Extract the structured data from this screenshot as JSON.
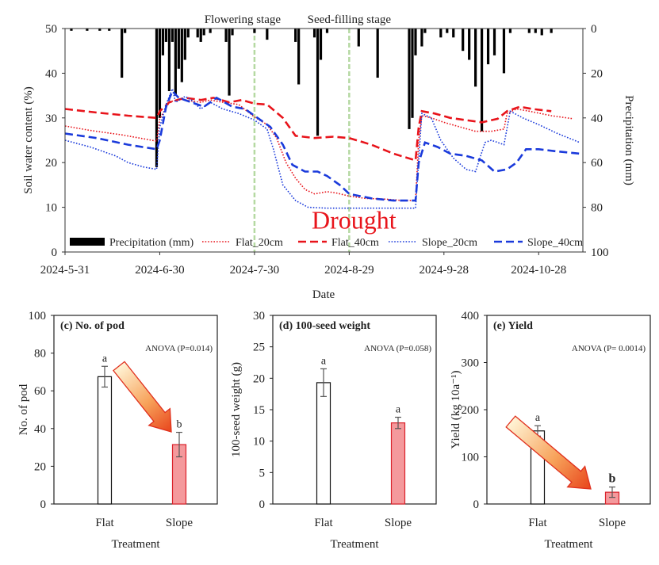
{
  "chart_data": [
    {
      "type": "line",
      "xlabel": "Date",
      "ylabel": "Soil water content (%)",
      "y2label": "Precipitation (mm)",
      "x_ticks": [
        "2024-5-31",
        "2024-6-30",
        "2024-7-30",
        "2024-8-29",
        "2024-9-28",
        "2024-10-28"
      ],
      "x_range": [
        "2024-5-31",
        "2024-11-11"
      ],
      "ylim": [
        0,
        50
      ],
      "y_ticks": [
        0,
        10,
        20,
        30,
        40,
        50
      ],
      "y2lim": [
        0,
        100
      ],
      "y2_inverted": true,
      "y2_ticks": [
        0,
        20,
        40,
        60,
        80,
        100
      ],
      "annotations": [
        {
          "text": "Flowering stage",
          "x": "2024-7-30"
        },
        {
          "text": "Seed-filling stage",
          "x": "2024-8-29"
        },
        {
          "text": "Drought",
          "x": "2024-8-29",
          "y": 7,
          "color": "#e8141b"
        }
      ],
      "precipitation": {
        "name": "Precipitation (mm)",
        "color": "#000000",
        "points": [
          [
            "2024-6-2",
            1
          ],
          [
            "2024-6-7",
            1
          ],
          [
            "2024-6-11",
            1
          ],
          [
            "2024-6-14",
            1
          ],
          [
            "2024-6-18",
            22
          ],
          [
            "2024-6-19",
            2
          ],
          [
            "2024-6-29",
            62
          ],
          [
            "2024-6-30",
            40
          ],
          [
            "2024-7-1",
            12
          ],
          [
            "2024-7-2",
            6
          ],
          [
            "2024-7-3",
            28
          ],
          [
            "2024-7-4",
            6
          ],
          [
            "2024-7-5",
            30
          ],
          [
            "2024-7-6",
            18
          ],
          [
            "2024-7-7",
            24
          ],
          [
            "2024-7-8",
            14
          ],
          [
            "2024-7-9",
            4
          ],
          [
            "2024-7-12",
            4
          ],
          [
            "2024-7-13",
            6
          ],
          [
            "2024-7-14",
            3
          ],
          [
            "2024-7-16",
            2
          ],
          [
            "2024-7-21",
            6
          ],
          [
            "2024-7-22",
            30
          ],
          [
            "2024-7-23",
            3
          ],
          [
            "2024-7-30",
            2
          ],
          [
            "2024-8-3",
            5
          ],
          [
            "2024-8-12",
            6
          ],
          [
            "2024-8-13",
            25
          ],
          [
            "2024-8-18",
            4
          ],
          [
            "2024-8-19",
            48
          ],
          [
            "2024-8-20",
            14
          ],
          [
            "2024-8-22",
            2
          ],
          [
            "2024-9-1",
            8
          ],
          [
            "2024-9-7",
            22
          ],
          [
            "2024-9-17",
            45
          ],
          [
            "2024-9-18",
            40
          ],
          [
            "2024-9-19",
            12
          ],
          [
            "2024-9-21",
            8
          ],
          [
            "2024-9-22",
            2
          ],
          [
            "2024-9-27",
            4
          ],
          [
            "2024-9-29",
            2
          ],
          [
            "2024-10-1",
            4
          ],
          [
            "2024-10-4",
            10
          ],
          [
            "2024-10-6",
            14
          ],
          [
            "2024-10-8",
            26
          ],
          [
            "2024-10-10",
            46
          ],
          [
            "2024-10-12",
            16
          ],
          [
            "2024-10-14",
            12
          ],
          [
            "2024-10-17",
            20
          ],
          [
            "2024-10-19",
            2
          ],
          [
            "2024-10-25",
            2
          ],
          [
            "2024-10-27",
            2
          ],
          [
            "2024-10-29",
            3
          ],
          [
            "2024-11-1",
            2
          ]
        ]
      },
      "series": [
        {
          "name": "Flat_20cm",
          "color": "#e8141b",
          "style": "dotted",
          "points": [
            [
              "2024-5-31",
              28.2
            ],
            [
              "2024-6-8",
              27.2
            ],
            [
              "2024-6-18",
              26.2
            ],
            [
              "2024-6-29",
              24.8
            ],
            [
              "2024-6-30",
              29.8
            ],
            [
              "2024-7-3",
              33.5
            ],
            [
              "2024-7-6",
              34.2
            ],
            [
              "2024-7-10",
              33.8
            ],
            [
              "2024-7-13",
              33.5
            ],
            [
              "2024-7-16",
              34.0
            ],
            [
              "2024-7-20",
              33.5
            ],
            [
              "2024-7-25",
              33.0
            ],
            [
              "2024-7-30",
              30.2
            ],
            [
              "2024-8-3",
              28.5
            ],
            [
              "2024-8-6",
              25.5
            ],
            [
              "2024-8-9",
              20.0
            ],
            [
              "2024-8-12",
              16.5
            ],
            [
              "2024-8-15",
              14.0
            ],
            [
              "2024-8-18",
              13.0
            ],
            [
              "2024-8-22",
              13.5
            ],
            [
              "2024-8-25",
              13.2
            ],
            [
              "2024-8-29",
              12.5
            ],
            [
              "2024-9-3",
              12.0
            ],
            [
              "2024-9-10",
              11.8
            ],
            [
              "2024-9-15",
              11.5
            ],
            [
              "2024-9-19",
              11.5
            ],
            [
              "2024-9-20",
              25.0
            ],
            [
              "2024-9-21",
              30.5
            ],
            [
              "2024-9-24",
              30.0
            ],
            [
              "2024-9-28",
              29.0
            ],
            [
              "2024-10-3",
              28.0
            ],
            [
              "2024-10-8",
              27.0
            ],
            [
              "2024-10-13",
              27.0
            ],
            [
              "2024-10-17",
              27.5
            ],
            [
              "2024-10-18",
              31.0
            ],
            [
              "2024-10-21",
              32.0
            ],
            [
              "2024-10-25",
              31.5
            ],
            [
              "2024-11-1",
              30.5
            ],
            [
              "2024-11-8",
              29.8
            ]
          ]
        },
        {
          "name": "Flat_40cm",
          "color": "#e8141b",
          "style": "dashed",
          "points": [
            [
              "2024-5-31",
              32.0
            ],
            [
              "2024-6-10",
              31.2
            ],
            [
              "2024-6-20",
              30.5
            ],
            [
              "2024-6-29",
              30.0
            ],
            [
              "2024-6-30",
              31.5
            ],
            [
              "2024-7-3",
              33.5
            ],
            [
              "2024-7-8",
              34.5
            ],
            [
              "2024-7-13",
              34.0
            ],
            [
              "2024-7-17",
              34.5
            ],
            [
              "2024-7-22",
              33.5
            ],
            [
              "2024-7-26",
              34.0
            ],
            [
              "2024-7-30",
              33.2
            ],
            [
              "2024-8-3",
              33.0
            ],
            [
              "2024-8-8",
              30.0
            ],
            [
              "2024-8-12",
              26.0
            ],
            [
              "2024-8-18",
              25.5
            ],
            [
              "2024-8-24",
              25.8
            ],
            [
              "2024-8-29",
              25.5
            ],
            [
              "2024-9-5",
              24.0
            ],
            [
              "2024-9-12",
              22.0
            ],
            [
              "2024-9-19",
              20.5
            ],
            [
              "2024-9-20",
              28.0
            ],
            [
              "2024-9-21",
              31.5
            ],
            [
              "2024-9-25",
              31.0
            ],
            [
              "2024-9-30",
              30.0
            ],
            [
              "2024-10-5",
              29.5
            ],
            [
              "2024-10-10",
              29.0
            ],
            [
              "2024-10-15",
              29.8
            ],
            [
              "2024-10-18",
              31.5
            ],
            [
              "2024-10-22",
              32.5
            ],
            [
              "2024-10-26",
              32.0
            ],
            [
              "2024-11-1",
              31.5
            ]
          ]
        },
        {
          "name": "Slope_20cm",
          "color": "#1a3adb",
          "style": "dotted",
          "points": [
            [
              "2024-5-31",
              25.0
            ],
            [
              "2024-6-8",
              23.5
            ],
            [
              "2024-6-16",
              21.5
            ],
            [
              "2024-6-20",
              20.0
            ],
            [
              "2024-6-25",
              19.0
            ],
            [
              "2024-6-29",
              18.5
            ],
            [
              "2024-6-30",
              28.0
            ],
            [
              "2024-7-2",
              33.0
            ],
            [
              "2024-7-4",
              36.5
            ],
            [
              "2024-7-5",
              33.5
            ],
            [
              "2024-7-8",
              34.8
            ],
            [
              "2024-7-10",
              34.0
            ],
            [
              "2024-7-13",
              32.0
            ],
            [
              "2024-7-16",
              33.5
            ],
            [
              "2024-7-20",
              32.0
            ],
            [
              "2024-7-25",
              31.0
            ],
            [
              "2024-7-30",
              29.5
            ],
            [
              "2024-8-3",
              27.5
            ],
            [
              "2024-8-5",
              23.0
            ],
            [
              "2024-8-8",
              15.0
            ],
            [
              "2024-8-12",
              11.5
            ],
            [
              "2024-8-16",
              10.0
            ],
            [
              "2024-8-22",
              9.8
            ],
            [
              "2024-8-29",
              9.8
            ],
            [
              "2024-9-5",
              9.8
            ],
            [
              "2024-9-12",
              9.8
            ],
            [
              "2024-9-19",
              9.8
            ],
            [
              "2024-9-21",
              31.0
            ],
            [
              "2024-9-24",
              30.0
            ],
            [
              "2024-9-27",
              25.0
            ],
            [
              "2024-10-1",
              21.0
            ],
            [
              "2024-10-5",
              18.5
            ],
            [
              "2024-10-8",
              18.0
            ],
            [
              "2024-10-11",
              24.5
            ],
            [
              "2024-10-13",
              25.0
            ],
            [
              "2024-10-15",
              24.5
            ],
            [
              "2024-10-17",
              24.0
            ],
            [
              "2024-10-19",
              31.5
            ],
            [
              "2024-10-23",
              30.0
            ],
            [
              "2024-10-28",
              28.5
            ],
            [
              "2024-11-3",
              26.5
            ],
            [
              "2024-11-10",
              24.5
            ]
          ]
        },
        {
          "name": "Slope_40cm",
          "color": "#1a3adb",
          "style": "dashed",
          "points": [
            [
              "2024-5-31",
              26.5
            ],
            [
              "2024-6-10",
              25.5
            ],
            [
              "2024-6-20",
              24.0
            ],
            [
              "2024-6-29",
              23.0
            ],
            [
              "2024-6-30",
              25.0
            ],
            [
              "2024-7-2",
              32.5
            ],
            [
              "2024-7-4",
              36.0
            ],
            [
              "2024-7-6",
              34.5
            ],
            [
              "2024-7-10",
              33.5
            ],
            [
              "2024-7-14",
              32.5
            ],
            [
              "2024-7-18",
              34.5
            ],
            [
              "2024-7-23",
              32.5
            ],
            [
              "2024-7-27",
              32.0
            ],
            [
              "2024-7-30",
              30.5
            ],
            [
              "2024-8-4",
              28.0
            ],
            [
              "2024-8-8",
              24.0
            ],
            [
              "2024-8-11",
              19.5
            ],
            [
              "2024-8-15",
              18.0
            ],
            [
              "2024-8-19",
              18.0
            ],
            [
              "2024-8-22",
              17.0
            ],
            [
              "2024-8-26",
              15.0
            ],
            [
              "2024-8-29",
              13.0
            ],
            [
              "2024-9-5",
              12.0
            ],
            [
              "2024-9-12",
              11.5
            ],
            [
              "2024-9-19",
              11.5
            ],
            [
              "2024-9-20",
              20.0
            ],
            [
              "2024-9-22",
              24.5
            ],
            [
              "2024-9-26",
              23.5
            ],
            [
              "2024-9-30",
              22.0
            ],
            [
              "2024-10-5",
              21.5
            ],
            [
              "2024-10-10",
              20.5
            ],
            [
              "2024-10-14",
              18.0
            ],
            [
              "2024-10-18",
              18.5
            ],
            [
              "2024-10-21",
              20.0
            ],
            [
              "2024-10-24",
              23.0
            ],
            [
              "2024-10-28",
              23.0
            ],
            [
              "2024-11-3",
              22.5
            ],
            [
              "2024-11-10",
              22.0
            ]
          ]
        }
      ],
      "legend": {
        "placement": "bottom",
        "items": [
          "Precipitation (mm)",
          "Flat_20cm",
          "Flat_40cm",
          "Slope_20cm",
          "Slope_40cm"
        ]
      }
    },
    {
      "type": "bar",
      "title": "(c) No. of pod",
      "anova": "ANOVA (P=0.014)",
      "xlabel": "Treatment",
      "ylabel": "No. of pod",
      "categories": [
        "Flat",
        "Slope"
      ],
      "values": [
        67.5,
        31.5
      ],
      "errors": [
        5.5,
        6.5
      ],
      "letters": [
        "a",
        "b"
      ],
      "colors": [
        "#ffffff",
        "#f4999c"
      ],
      "ylim": [
        0,
        100
      ],
      "y_ticks": [
        0,
        20,
        40,
        60,
        80,
        100
      ],
      "arrow": true
    },
    {
      "type": "bar",
      "title": "(d) 100-seed weight",
      "anova": "ANOVA (P=0.058)",
      "xlabel": "Treatment",
      "ylabel": "100-seed weight (g)",
      "categories": [
        "Flat",
        "Slope"
      ],
      "values": [
        19.3,
        12.9
      ],
      "errors": [
        2.2,
        0.9
      ],
      "letters": [
        "a",
        "a"
      ],
      "colors": [
        "#ffffff",
        "#f4999c"
      ],
      "ylim": [
        0,
        30
      ],
      "y_ticks": [
        0,
        5,
        10,
        15,
        20,
        25,
        30
      ],
      "arrow": false
    },
    {
      "type": "bar",
      "title": "(e) Yield",
      "anova": "ANOVA (P= 0.0014)",
      "xlabel": "Treatment",
      "ylabel": "Yield (kg 10a⁻¹)",
      "categories": [
        "Flat",
        "Slope"
      ],
      "values": [
        155,
        25
      ],
      "errors": [
        11,
        11
      ],
      "letters": [
        "a",
        "b"
      ],
      "colors": [
        "#ffffff",
        "#f4999c"
      ],
      "ylim": [
        0,
        400
      ],
      "y_ticks": [
        0,
        100,
        200,
        300,
        400
      ],
      "arrow": true
    }
  ]
}
